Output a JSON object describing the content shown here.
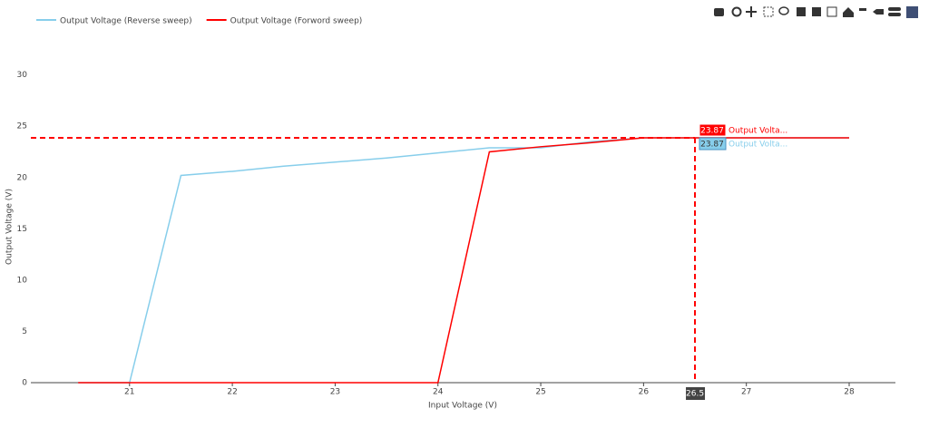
{
  "chart_data": {
    "type": "line",
    "x_label": "Input Voltage (V)",
    "y_label": "Output Voltage (V)",
    "x": [
      20.5,
      21,
      21.5,
      22,
      22.5,
      23,
      23.5,
      24,
      24.5,
      25,
      25.5,
      26,
      26.5,
      27,
      27.5,
      28
    ],
    "series": [
      {
        "name": "Output Voltage (Reverse sweep)",
        "color": "#87ceeb",
        "values": [
          0,
          0,
          20.2,
          20.6,
          21.1,
          21.5,
          21.9,
          22.4,
          22.9,
          22.9,
          23.5,
          23.87,
          23.87,
          23.87,
          23.87,
          23.87
        ]
      },
      {
        "name": "Output Voltage (Forword sweep)",
        "color": "#ff0000",
        "values": [
          0,
          0,
          0,
          0,
          0,
          0,
          0,
          0,
          22.5,
          23.0,
          23.4,
          23.87,
          23.87,
          23.87,
          23.87,
          23.87
        ]
      }
    ],
    "xlim": [
      20.04,
      28.45
    ],
    "xticks": [
      21,
      22,
      23,
      24,
      25,
      26,
      27,
      28
    ],
    "ylim": [
      0,
      32
    ],
    "yticks": [
      0,
      5,
      10,
      15,
      20,
      25,
      30
    ],
    "grid": false,
    "legend": "top-left",
    "hover": {
      "x": 26.5,
      "y": 23.87,
      "spike_color": "#ff0000",
      "labels": [
        {
          "value": 23.87,
          "name": "Output Volta..."
        },
        {
          "value": 23.87,
          "name": "Output Volta..."
        }
      ]
    }
  }
}
